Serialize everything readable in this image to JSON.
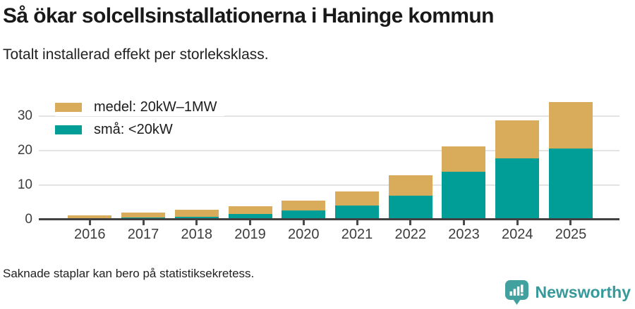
{
  "header": {
    "title": "Så ökar solcellsinstallationerna i Haninge kommun",
    "subtitle": "Totalt installerad effekt per storleksklass."
  },
  "chart_data": {
    "type": "bar",
    "stacked": true,
    "title": "Så ökar solcellsinstallationerna i Haninge kommun",
    "subtitle": "Totalt installerad effekt per storleksklass.",
    "categories": [
      "2016",
      "2017",
      "2018",
      "2019",
      "2020",
      "2021",
      "2022",
      "2023",
      "2024",
      "2025"
    ],
    "series": [
      {
        "name": "små: <20kW",
        "color": "#009E96",
        "values": [
          0.1,
          0.5,
          0.8,
          1.5,
          2.6,
          4.0,
          6.9,
          13.7,
          17.6,
          20.5
        ]
      },
      {
        "name": "medel: 20kW–1MW",
        "color": "#D9AC5C",
        "values": [
          1.0,
          1.4,
          1.9,
          2.3,
          2.9,
          4.0,
          5.9,
          7.4,
          11.0,
          13.5
        ]
      }
    ],
    "legend": [
      {
        "label": "medel: 20kW–1MW",
        "color": "#D9AC5C"
      },
      {
        "label": "små: <20kW",
        "color": "#009E96"
      }
    ],
    "legend_position": "top-left",
    "xlabel": "",
    "ylabel": "",
    "yticks": [
      0,
      10,
      20,
      30
    ],
    "ylim": [
      0,
      36
    ],
    "grid": "horizontal"
  },
  "footer": {
    "note": "Saknade staplar kan bero på statistiksekretess.",
    "brand": "Newsworthy"
  },
  "colors": {
    "bar_small": "#009E96",
    "bar_medium": "#D9AC5C",
    "brand_teal": "#42A09E",
    "brand_text": "#38999A"
  }
}
